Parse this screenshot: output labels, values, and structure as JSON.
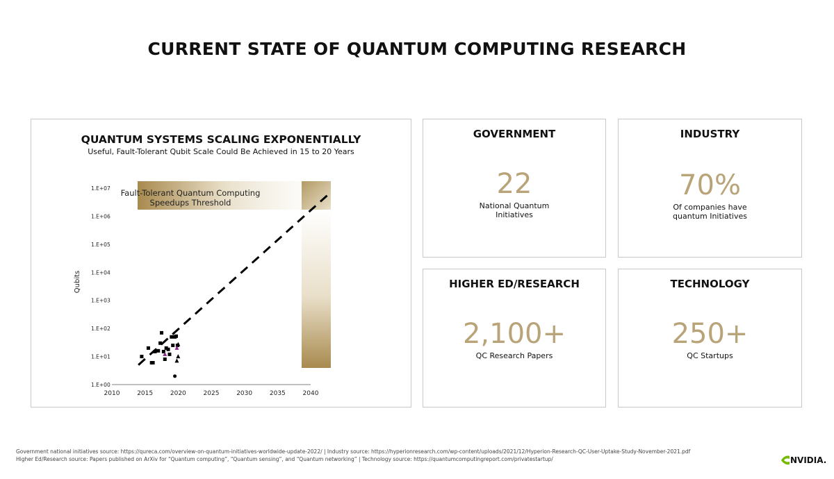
{
  "page": {
    "title": "CURRENT STATE OF QUANTUM COMPUTING RESEARCH"
  },
  "chart": {
    "title": "QUANTUM SYSTEMS SCALING EXPONENTIALLY",
    "subtitle": "Useful, Fault-Tolerant Qubit Scale Could Be Achieved in 15 to 20 Years",
    "threshold_label_line1": "Fault-Tolerant Quantum Computing",
    "threshold_label_line2": "Speedups Threshold",
    "ylabel": "Qubits"
  },
  "chart_data": {
    "type": "scatter",
    "title": "QUANTUM SYSTEMS SCALING EXPONENTIALLY",
    "subtitle": "Useful, Fault-Tolerant Qubit Scale Could Be Achieved in 15 to 20 Years",
    "xlabel": "",
    "ylabel": "Qubits",
    "y_scale": "log",
    "x_ticks": [
      "2010",
      "2015",
      "2020",
      "2025",
      "2030",
      "2035",
      "2040"
    ],
    "y_ticks": [
      "1.E+00",
      "1.E+01",
      "1.E+02",
      "1.E+03",
      "1.E+04",
      "1.E+05",
      "1.E+06",
      "1.E+07"
    ],
    "xlim": [
      2010,
      2040
    ],
    "ylim": [
      1,
      10000000
    ],
    "trend": {
      "from": [
        2014,
        5
      ],
      "to": [
        2043,
        7000000
      ]
    },
    "series": [
      {
        "marker": "square",
        "color": "#000000",
        "points": [
          [
            2014.5,
            10
          ],
          [
            2015.5,
            20
          ],
          [
            2016,
            6
          ],
          [
            2016.2,
            6
          ],
          [
            2016.5,
            15
          ],
          [
            2017,
            16
          ],
          [
            2017.3,
            30
          ],
          [
            2017.5,
            70
          ],
          [
            2017.8,
            15
          ],
          [
            2018,
            8
          ],
          [
            2018.2,
            20
          ],
          [
            2018.5,
            18
          ],
          [
            2018.7,
            12
          ],
          [
            2019,
            50
          ],
          [
            2019.2,
            25
          ],
          [
            2019.5,
            50
          ],
          [
            2019.7,
            53
          ],
          [
            2019.9,
            25
          ]
        ]
      },
      {
        "marker": "triangle",
        "color": "#000000",
        "points": [
          [
            2019.8,
            7
          ],
          [
            2020,
            10
          ],
          [
            2020,
            27
          ]
        ]
      },
      {
        "marker": "triangle",
        "color": "#8a2a8a",
        "points": [
          [
            2018,
            12
          ],
          [
            2019.8,
            20
          ]
        ]
      },
      {
        "marker": "circle",
        "color": "#000000",
        "points": [
          [
            2019.5,
            2
          ]
        ]
      }
    ]
  },
  "cards": {
    "government": {
      "title": "GOVERNMENT",
      "value": "22",
      "desc1": "National Quantum",
      "desc2": "Initiatives"
    },
    "industry": {
      "title": "INDUSTRY",
      "value": "70%",
      "desc1": "Of companies have",
      "desc2": "quantum Initiatives"
    },
    "higher_ed": {
      "title": "HIGHER ED/RESEARCH",
      "value": "2,100+",
      "desc1": "QC Research Papers"
    },
    "technology": {
      "title": "TECHNOLOGY",
      "value": "250+",
      "desc1": "QC Startups"
    }
  },
  "footnotes": {
    "line1": "Government national initiatives source: https://qureca.com/overview-on-quantum-initiatives-worldwide-update-2022/  | Industry source: https://hyperionresearch.com/wp-content/uploads/2021/12/Hyperion-Research-QC-User-Uptake-Study-November-2021.pdf",
    "line2": "Higher Ed/Research source: Papers published on ArXiv for “Quantum computing”, “Quantum sensing”, and “Quantum networking” | Technology source: https://quantumcomputingreport.com/privatestartup/"
  },
  "logo": {
    "text": "NVIDIA."
  },
  "colors": {
    "gold": "#b9a479",
    "gold_dark": "#9e8450",
    "border": "#c8c8c8"
  }
}
